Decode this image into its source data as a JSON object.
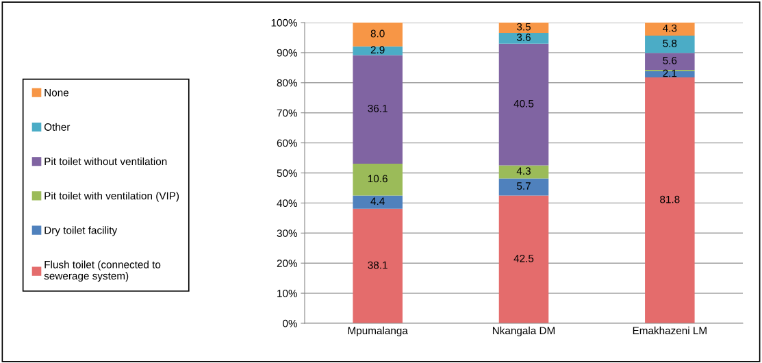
{
  "chart_data": {
    "type": "bar",
    "stacked": true,
    "categories": [
      "Mpumalanga",
      "Nkangala DM",
      "Emakhazeni LM"
    ],
    "series": [
      {
        "name": "Flush toilet (connected to\nsewerage system)",
        "color": "#e46c6c",
        "values": [
          38.1,
          42.5,
          81.8
        ],
        "value_labels": [
          "38.1",
          "42.5",
          "81.8"
        ]
      },
      {
        "name": "Dry toilet facility",
        "color": "#4f81bd",
        "values": [
          4.4,
          5.7,
          2.1
        ],
        "value_labels": [
          "4.4",
          "5.7",
          "2.1"
        ]
      },
      {
        "name": "Pit toilet with ventilation (VIP)",
        "color": "#9bbb59",
        "values": [
          10.6,
          4.3,
          0.4
        ],
        "value_labels": [
          "10.6",
          "4.3",
          null
        ]
      },
      {
        "name": "Pit toilet without ventilation",
        "color": "#8064a2",
        "values": [
          36.1,
          40.5,
          5.6
        ],
        "value_labels": [
          "36.1",
          "40.5",
          "5.6"
        ]
      },
      {
        "name": "Other",
        "color": "#4bacc6",
        "values": [
          2.9,
          3.6,
          5.8
        ],
        "value_labels": [
          "2.9",
          "3.6",
          "5.8"
        ]
      },
      {
        "name": "None",
        "color": "#f79646",
        "values": [
          8.0,
          3.5,
          4.3
        ],
        "value_labels": [
          "8.0",
          "3.5",
          "4.3"
        ]
      }
    ],
    "ylim": [
      0,
      100
    ],
    "yticks": [
      {
        "value": 0,
        "label": "0%"
      },
      {
        "value": 10,
        "label": "10%"
      },
      {
        "value": 20,
        "label": "20%"
      },
      {
        "value": 30,
        "label": "30%"
      },
      {
        "value": 40,
        "label": "40%"
      },
      {
        "value": 50,
        "label": "50%"
      },
      {
        "value": 60,
        "label": "60%"
      },
      {
        "value": 70,
        "label": "70%"
      },
      {
        "value": 80,
        "label": "80%"
      },
      {
        "value": 90,
        "label": "90%"
      },
      {
        "value": 100,
        "label": "100%"
      }
    ],
    "grid": "y",
    "legend": "left"
  }
}
